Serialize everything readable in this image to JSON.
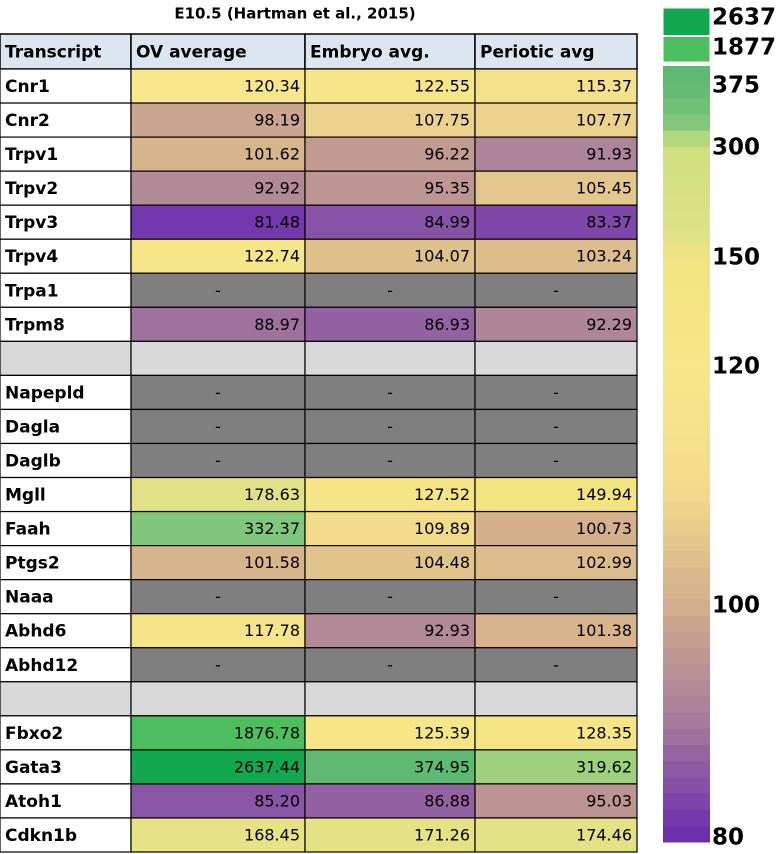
{
  "title": "E10.5 (Hartman et al., 2015)",
  "table": {
    "header": [
      "Transcript",
      "OV average",
      "Embryo avg.",
      "Periotic avg"
    ],
    "rows": [
      [
        "Cnr1",
        "120.34",
        "122.55",
        "115.37"
      ],
      [
        "Cnr2",
        "98.19",
        "107.75",
        "107.77"
      ],
      [
        "Trpv1",
        "101.62",
        "96.22",
        "91.93"
      ],
      [
        "Trpv2",
        "92.92",
        "95.35",
        "105.45"
      ],
      [
        "Trpv3",
        "81.48",
        "84.99",
        "83.37"
      ],
      [
        "Trpv4",
        "122.74",
        "104.07",
        "103.24"
      ],
      [
        "Trpa1",
        "-",
        "-",
        "-"
      ],
      [
        "Trpm8",
        "88.97",
        "86.93",
        "92.29"
      ],
      null,
      [
        "Napepld",
        "-",
        "-",
        "-"
      ],
      [
        "Dagla",
        "-",
        "-",
        "-"
      ],
      [
        "Daglb",
        "-",
        "-",
        "-"
      ],
      [
        "Mgll",
        "178.63",
        "127.52",
        "149.94"
      ],
      [
        "Faah",
        "332.37",
        "109.89",
        "100.73"
      ],
      [
        "Ptgs2",
        "101.58",
        "104.48",
        "102.99"
      ],
      [
        "Naaa",
        "-",
        "-",
        "-"
      ],
      [
        "Abhd6",
        "117.78",
        "92.93",
        "101.38"
      ],
      [
        "Abhd12",
        "-",
        "-",
        "-"
      ],
      null,
      [
        "Fbxo2",
        "1876.78",
        "125.39",
        "128.35"
      ],
      [
        "Gata3",
        "2637.44",
        "374.95",
        "319.62"
      ],
      [
        "Atoh1",
        "85.20",
        "86.88",
        "95.03"
      ],
      [
        "Cdkn1b",
        "168.45",
        "171.26",
        "174.46"
      ]
    ]
  },
  "legend": [
    2637,
    1877,
    375,
    300,
    150,
    120,
    100,
    80
  ],
  "scale": [
    {
      "value": 80,
      "color": "#6a2daf"
    },
    {
      "value": 90,
      "color": "#a57a9c"
    },
    {
      "value": 100,
      "color": "#d2ae8c"
    },
    {
      "value": 110,
      "color": "#f3dc8c"
    },
    {
      "value": 120,
      "color": "#f7e68a"
    },
    {
      "value": 150,
      "color": "#f2e480"
    },
    {
      "value": 180,
      "color": "#e0e188"
    },
    {
      "value": 300,
      "color": "#cfe07e"
    },
    {
      "value": 332,
      "color": "#80c67c"
    },
    {
      "value": 375,
      "color": "#5fb973"
    },
    {
      "value": 1877,
      "color": "#4cbe5e"
    },
    {
      "value": 2637,
      "color": "#12a84f"
    }
  ]
}
